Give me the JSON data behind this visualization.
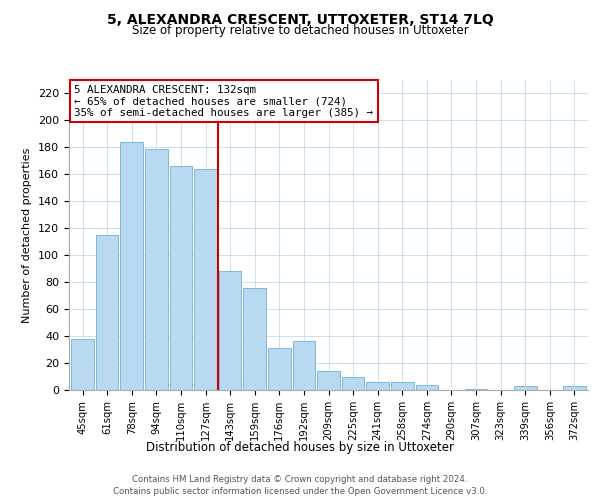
{
  "title": "5, ALEXANDRA CRESCENT, UTTOXETER, ST14 7LQ",
  "subtitle": "Size of property relative to detached houses in Uttoxeter",
  "xlabel": "Distribution of detached houses by size in Uttoxeter",
  "ylabel": "Number of detached properties",
  "bar_labels": [
    "45sqm",
    "61sqm",
    "78sqm",
    "94sqm",
    "110sqm",
    "127sqm",
    "143sqm",
    "159sqm",
    "176sqm",
    "192sqm",
    "209sqm",
    "225sqm",
    "241sqm",
    "258sqm",
    "274sqm",
    "290sqm",
    "307sqm",
    "323sqm",
    "339sqm",
    "356sqm",
    "372sqm"
  ],
  "bar_values": [
    38,
    115,
    184,
    179,
    166,
    164,
    88,
    76,
    31,
    36,
    14,
    10,
    6,
    6,
    4,
    0,
    1,
    0,
    3,
    0,
    3
  ],
  "bar_color": "#b8d9f0",
  "bar_edge_color": "#7ab8e0",
  "vline_index": 5,
  "vline_color": "#cc0000",
  "annotation_text": "5 ALEXANDRA CRESCENT: 132sqm\n← 65% of detached houses are smaller (724)\n35% of semi-detached houses are larger (385) →",
  "annotation_box_color": "#ffffff",
  "annotation_box_edge": "#cc0000",
  "ylim": [
    0,
    230
  ],
  "yticks": [
    0,
    20,
    40,
    60,
    80,
    100,
    120,
    140,
    160,
    180,
    200,
    220
  ],
  "footer_line1": "Contains HM Land Registry data © Crown copyright and database right 2024.",
  "footer_line2": "Contains public sector information licensed under the Open Government Licence v3.0.",
  "background_color": "#ffffff",
  "grid_color": "#ccdff0"
}
